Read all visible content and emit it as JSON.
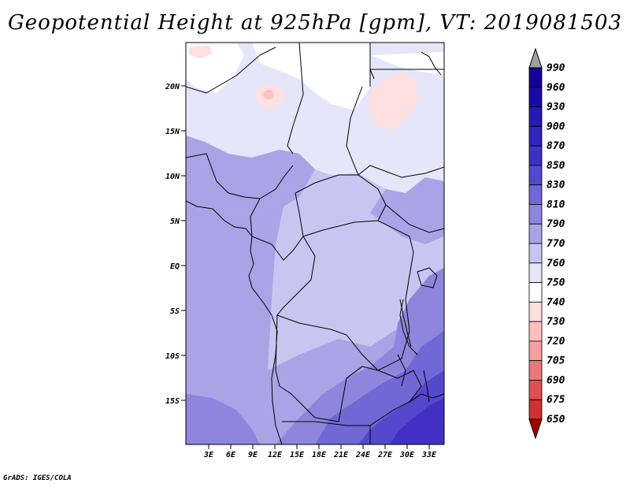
{
  "title": "Geopotential Height at 925hPa [gpm], VT: 2019081503",
  "footer": "GrADS: IGES/COLA",
  "map": {
    "lat_labels": [
      "20N",
      "15N",
      "10N",
      "5N",
      "EQ",
      "5S",
      "10S",
      "15S"
    ],
    "lon_labels": [
      "3E",
      "6E",
      "9E",
      "12E",
      "15E",
      "18E",
      "21E",
      "24E",
      "27E",
      "30E",
      "33E"
    ]
  },
  "colorbar": {
    "levels": [
      "990",
      "960",
      "930",
      "900",
      "870",
      "850",
      "830",
      "810",
      "790",
      "770",
      "760",
      "750",
      "740",
      "730",
      "720",
      "705",
      "690",
      "675",
      "650"
    ],
    "colors": [
      "#140096",
      "#1a0aa8",
      "#2818b4",
      "#3422bc",
      "#4030c4",
      "#5448cc",
      "#7068d4",
      "#8e86dc",
      "#aaa4e6",
      "#c8c6f0",
      "#e6e6fa",
      "#ffffff",
      "#ffe0e0",
      "#ffc0c0",
      "#f4a0a0",
      "#ea7878",
      "#e05050",
      "#d03030",
      "#b41818",
      "#a00000"
    ]
  }
}
